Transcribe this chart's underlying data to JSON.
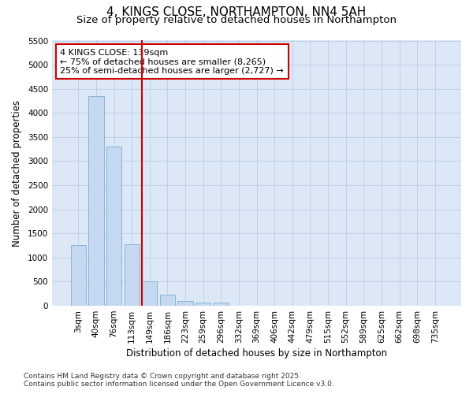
{
  "title": "4, KINGS CLOSE, NORTHAMPTON, NN4 5AH",
  "subtitle": "Size of property relative to detached houses in Northampton",
  "xlabel": "Distribution of detached houses by size in Northampton",
  "ylabel": "Number of detached properties",
  "categories": [
    "3sqm",
    "40sqm",
    "76sqm",
    "113sqm",
    "149sqm",
    "186sqm",
    "223sqm",
    "259sqm",
    "296sqm",
    "332sqm",
    "369sqm",
    "406sqm",
    "442sqm",
    "479sqm",
    "515sqm",
    "552sqm",
    "589sqm",
    "625sqm",
    "662sqm",
    "698sqm",
    "735sqm"
  ],
  "values": [
    1260,
    4350,
    3300,
    1280,
    500,
    230,
    100,
    60,
    60,
    0,
    0,
    0,
    0,
    0,
    0,
    0,
    0,
    0,
    0,
    0,
    0
  ],
  "bar_color": "#c5d8f0",
  "bar_edge_color": "#7bafd4",
  "vline_index": 4,
  "vline_color": "#cc0000",
  "annotation_text": "4 KINGS CLOSE: 139sqm\n← 75% of detached houses are smaller (8,265)\n25% of semi-detached houses are larger (2,727) →",
  "annotation_box_color": "#ffffff",
  "annotation_box_edge": "#cc0000",
  "ylim": [
    0,
    5500
  ],
  "yticks": [
    0,
    500,
    1000,
    1500,
    2000,
    2500,
    3000,
    3500,
    4000,
    4500,
    5000,
    5500
  ],
  "fig_bg_color": "#ffffff",
  "axes_bg_color": "#dce8f5",
  "grid_color": "#c0d0e8",
  "footer": "Contains HM Land Registry data © Crown copyright and database right 2025.\nContains public sector information licensed under the Open Government Licence v3.0.",
  "title_fontsize": 11,
  "subtitle_fontsize": 9.5,
  "axis_label_fontsize": 8.5,
  "tick_fontsize": 7.5,
  "footer_fontsize": 6.5,
  "annot_fontsize": 8
}
